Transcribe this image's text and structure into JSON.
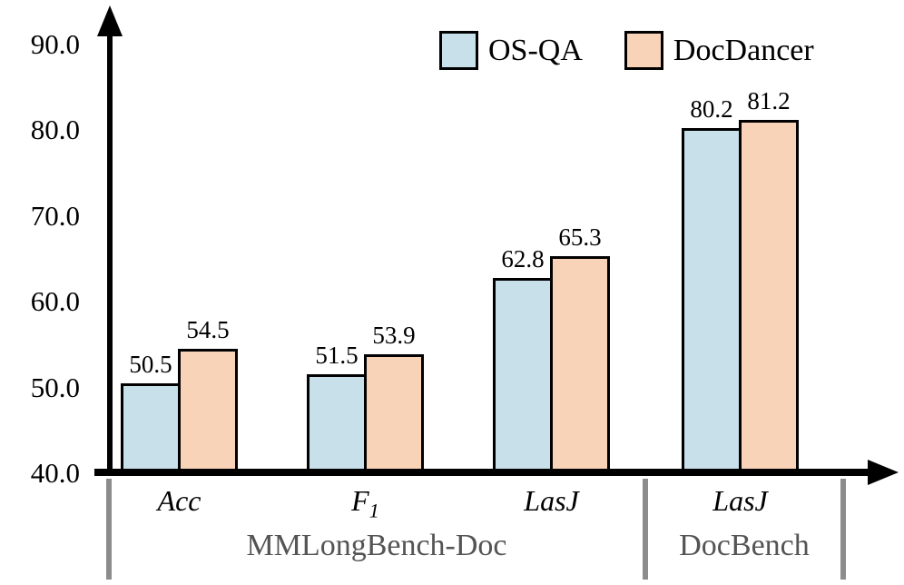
{
  "chart_data": {
    "type": "bar",
    "categories": [
      {
        "label": "Acc",
        "sub": ""
      },
      {
        "label": "F",
        "sub": "1"
      },
      {
        "label": "LasJ",
        "sub": ""
      },
      {
        "label": "LasJ",
        "sub": ""
      }
    ],
    "groups": [
      {
        "name": "MMLongBench-Doc",
        "category_indexes": [
          0,
          1,
          2
        ]
      },
      {
        "name": "DocBench",
        "category_indexes": [
          3
        ]
      }
    ],
    "series": [
      {
        "name": "OS-QA",
        "color": "#c8e0ea",
        "values": [
          50.5,
          51.5,
          62.8,
          80.2
        ]
      },
      {
        "name": "DocDancer",
        "color": "#f9d3b8",
        "values": [
          54.5,
          53.9,
          65.3,
          81.2
        ]
      }
    ],
    "y_ticks": [
      "90.0",
      "80.0",
      "70.0",
      "60.0",
      "50.0",
      "40.0"
    ],
    "ylim": [
      40,
      90
    ],
    "grid": false,
    "legend_position": "top-center-inside",
    "value_labels_shown": true
  },
  "colors": {
    "axis": "#000000",
    "bar_border": "#000000",
    "separator": "#8c8c8c",
    "group_label_text": "#545454"
  }
}
